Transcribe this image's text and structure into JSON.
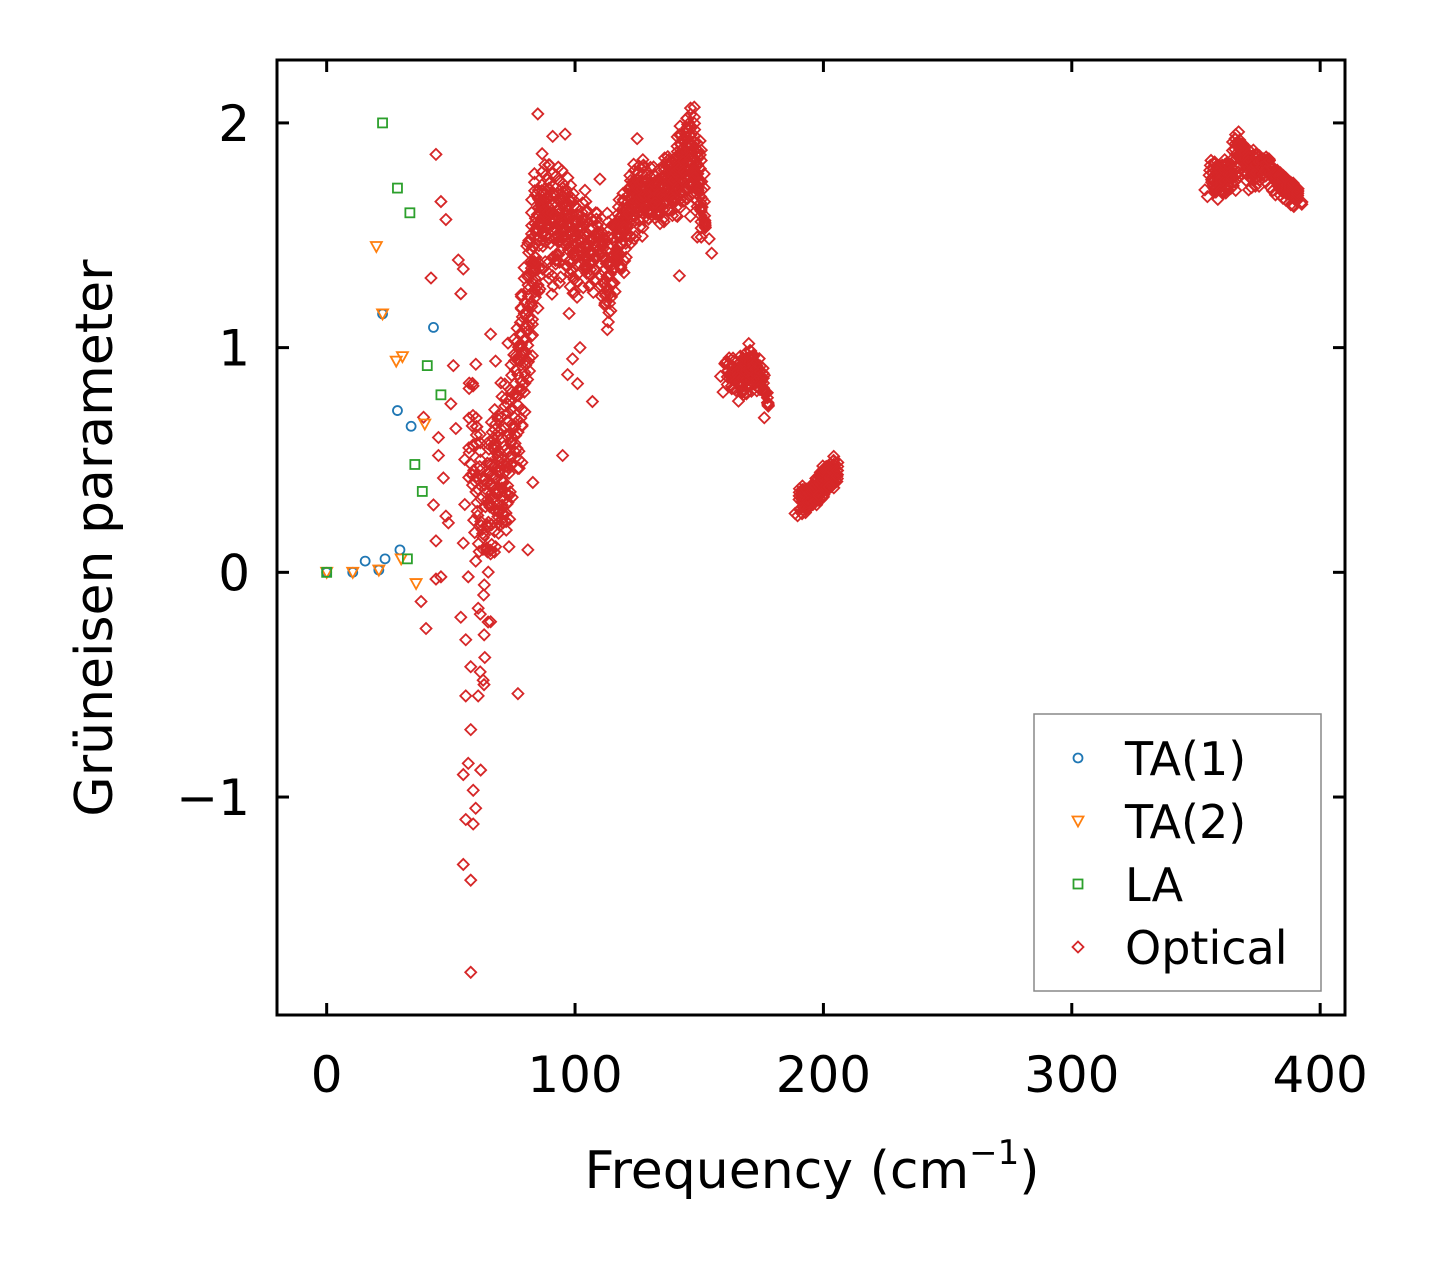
{
  "chart_data": {
    "type": "scatter",
    "xlabel": "Frequency (cm",
    "xlabel_sup": "−1",
    "xlabel_end": ")",
    "ylabel": "Grüneisen parameter",
    "xlim": [
      -20,
      410
    ],
    "ylim": [
      -1.97,
      2.28
    ],
    "xticks": [
      0,
      100,
      200,
      300,
      400
    ],
    "xtick_labels": [
      "0",
      "100",
      "200",
      "300",
      "400"
    ],
    "yticks": [
      -1,
      0,
      1,
      2
    ],
    "ytick_labels": [
      "−1",
      "0",
      "1",
      "2"
    ],
    "legend_position": "lower-right",
    "series": [
      {
        "name": "TA(1)",
        "marker": "circle",
        "color": "#1f77b4",
        "points": [
          [
            0,
            0
          ],
          [
            10.5,
            0
          ],
          [
            15.5,
            0.05
          ],
          [
            21,
            0.01
          ],
          [
            23.5,
            0.06
          ],
          [
            29.5,
            0.1
          ],
          [
            22.5,
            1.15
          ],
          [
            28.5,
            0.72
          ],
          [
            34,
            0.65
          ],
          [
            43,
            1.09
          ]
        ]
      },
      {
        "name": "TA(2)",
        "marker": "triangle-down",
        "color": "#ff7f0e",
        "points": [
          [
            0,
            0
          ],
          [
            10.5,
            0
          ],
          [
            21,
            0.01
          ],
          [
            30,
            0.06
          ],
          [
            36,
            -0.05
          ],
          [
            20,
            1.45
          ],
          [
            22.5,
            1.15
          ],
          [
            28,
            0.94
          ],
          [
            30.5,
            0.96
          ],
          [
            39.5,
            0.66
          ]
        ]
      },
      {
        "name": "LA",
        "marker": "square",
        "color": "#2ca02c",
        "points": [
          [
            0,
            0
          ],
          [
            32.5,
            0.06
          ],
          [
            22.5,
            2.0
          ],
          [
            28.5,
            1.71
          ],
          [
            33.5,
            1.6
          ],
          [
            40.5,
            0.92
          ],
          [
            46,
            0.79
          ],
          [
            35.5,
            0.48
          ],
          [
            38.5,
            0.36
          ]
        ]
      },
      {
        "name": "Optical",
        "marker": "diamond",
        "color": "#d62728",
        "points": [
          [
            44,
            1.86
          ],
          [
            46,
            1.65
          ],
          [
            48,
            1.57
          ],
          [
            42,
            1.31
          ],
          [
            53,
            1.39
          ],
          [
            55,
            1.35
          ],
          [
            54,
            1.24
          ],
          [
            51,
            0.92
          ],
          [
            50,
            0.75
          ],
          [
            52,
            0.64
          ],
          [
            45,
            0.52
          ],
          [
            47,
            0.42
          ],
          [
            43,
            0.3
          ],
          [
            49,
            0.22
          ],
          [
            44,
            0.14
          ],
          [
            46,
            -0.02
          ],
          [
            44,
            -0.03
          ],
          [
            38,
            -0.13
          ],
          [
            40,
            -0.25
          ],
          [
            39,
            0.69
          ],
          [
            45,
            0.6
          ],
          [
            48,
            0.25
          ],
          [
            55,
            0.13
          ],
          [
            54,
            -0.2
          ],
          [
            56,
            -0.3
          ],
          [
            58,
            -0.42
          ],
          [
            61,
            -0.55
          ],
          [
            56,
            -0.55
          ],
          [
            58,
            -0.7
          ],
          [
            57,
            -0.85
          ],
          [
            55,
            -0.9
          ],
          [
            59,
            -0.97
          ],
          [
            60,
            -1.05
          ],
          [
            59,
            -1.12
          ],
          [
            56,
            -1.1
          ],
          [
            55,
            -1.3
          ],
          [
            58,
            -1.37
          ],
          [
            58,
            -1.78
          ],
          [
            61,
            -0.16
          ],
          [
            63,
            -0.48
          ],
          [
            66,
            -0.22
          ],
          [
            77,
            -0.54
          ],
          [
            62,
            -0.88
          ],
          [
            57,
            -0.02
          ],
          [
            60,
            0.05
          ],
          [
            95,
            0.52
          ],
          [
            97,
            0.88
          ],
          [
            99,
            0.95
          ],
          [
            101,
            0.84
          ],
          [
            107,
            0.76
          ],
          [
            102,
            1.0
          ],
          [
            113,
            1.08
          ],
          [
            142,
            1.32
          ],
          [
            136,
            1.62
          ],
          [
            125,
            1.93
          ],
          [
            110,
            1.75
          ],
          [
            104,
            1.7
          ],
          [
            96,
            1.95
          ],
          [
            91,
            1.94
          ],
          [
            85,
            2.04
          ],
          [
            148,
            2.07
          ],
          [
            145,
            2.02
          ],
          [
            155,
            1.42
          ],
          [
            83,
            0.4
          ],
          [
            81,
            0.1
          ],
          [
            71,
            0.22
          ],
          [
            66,
            1.06
          ],
          [
            68,
            0.94
          ],
          [
            73,
            1.02
          ]
        ],
        "dense_segments": [
          [
            [
              57,
              0.35
            ],
            [
              59,
              0.95
            ],
            [
              63,
              -0.5
            ],
            [
              65,
              0.55
            ],
            [
              67,
              0.05
            ],
            [
              69,
              0.45
            ],
            [
              71,
              0.85
            ],
            [
              73,
              0.3
            ],
            [
              76,
              1.0
            ],
            [
              78,
              0.6
            ],
            [
              80,
              1.35
            ],
            [
              82,
              1.05
            ],
            [
              84,
              1.75
            ],
            [
              86,
              1.5
            ],
            [
              88,
              1.85
            ],
            [
              90,
              1.25
            ],
            [
              93,
              1.6
            ],
            [
              96,
              1.45
            ],
            [
              98,
              1.75
            ],
            [
              100,
              1.35
            ],
            [
              103,
              1.55
            ],
            [
              106,
              1.25
            ],
            [
              109,
              1.45
            ],
            [
              112,
              1.15
            ],
            [
              115,
              1.3
            ],
            [
              117,
              1.55
            ],
            [
              120,
              1.65
            ],
            [
              122,
              1.45
            ],
            [
              124,
              1.8
            ],
            [
              127,
              1.6
            ],
            [
              130,
              1.72
            ],
            [
              133,
              1.6
            ],
            [
              136,
              1.72
            ],
            [
              139,
              1.68
            ],
            [
              141,
              1.8
            ],
            [
              143,
              1.95
            ],
            [
              145,
              1.7
            ],
            [
              147,
              2.05
            ],
            [
              149,
              1.85
            ],
            [
              151,
              1.6
            ],
            [
              153,
              1.5
            ]
          ],
          [
            [
              57,
              0.55
            ],
            [
              61,
              0.25
            ],
            [
              64,
              0.1
            ],
            [
              67,
              0.6
            ],
            [
              70,
              0.4
            ],
            [
              72,
              0.15
            ],
            [
              75,
              0.7
            ],
            [
              77,
              0.45
            ],
            [
              79,
              1.2
            ],
            [
              81,
              0.85
            ],
            [
              83,
              1.6
            ],
            [
              85,
              1.25
            ],
            [
              87,
              1.7
            ],
            [
              89,
              1.45
            ],
            [
              91,
              1.8
            ],
            [
              93,
              1.3
            ],
            [
              95,
              1.7
            ],
            [
              97,
              1.55
            ],
            [
              99,
              1.2
            ],
            [
              101,
              1.5
            ],
            [
              104,
              1.65
            ],
            [
              107,
              1.35
            ],
            [
              110,
              1.55
            ],
            [
              113,
              1.2
            ],
            [
              116,
              1.45
            ],
            [
              118,
              1.35
            ],
            [
              121,
              1.55
            ],
            [
              123,
              1.75
            ],
            [
              126,
              1.52
            ],
            [
              129,
              1.65
            ],
            [
              132,
              1.78
            ],
            [
              135,
              1.55
            ],
            [
              138,
              1.8
            ],
            [
              140,
              1.6
            ],
            [
              142,
              1.72
            ],
            [
              144,
              1.85
            ],
            [
              146,
              2.0
            ],
            [
              148,
              1.75
            ],
            [
              150,
              1.92
            ],
            [
              152,
              1.55
            ]
          ],
          [
            [
              60,
              0.7
            ],
            [
              62,
              0.45
            ],
            [
              65,
              0.3
            ],
            [
              68,
              0.7
            ],
            [
              70,
              0.2
            ],
            [
              73,
              0.55
            ],
            [
              75,
              0.85
            ],
            [
              78,
              1.1
            ],
            [
              80,
              0.8
            ],
            [
              82,
              1.5
            ],
            [
              84,
              1.2
            ],
            [
              86,
              1.65
            ],
            [
              88,
              1.55
            ],
            [
              90,
              1.7
            ],
            [
              92,
              1.45
            ],
            [
              94,
              1.8
            ],
            [
              97,
              1.35
            ],
            [
              100,
              1.65
            ],
            [
              102,
              1.45
            ],
            [
              105,
              1.3
            ],
            [
              108,
              1.6
            ],
            [
              111,
              1.4
            ],
            [
              114,
              1.55
            ],
            [
              119,
              1.5
            ],
            [
              122,
              1.62
            ],
            [
              125,
              1.7
            ],
            [
              128,
              1.8
            ],
            [
              131,
              1.62
            ],
            [
              134,
              1.7
            ],
            [
              137,
              1.85
            ],
            [
              140,
              1.72
            ],
            [
              143,
              1.9
            ],
            [
              145,
              1.62
            ],
            [
              147,
              1.8
            ],
            [
              149,
              1.7
            ],
            [
              151,
              1.5
            ]
          ],
          [
            [
              160,
              0.92
            ],
            [
              163,
              0.88
            ],
            [
              166,
              0.85
            ],
            [
              168,
              0.93
            ],
            [
              170,
              0.82
            ],
            [
              172,
              0.95
            ],
            [
              174,
              0.88
            ],
            [
              176,
              0.8
            ],
            [
              178,
              0.72
            ]
          ],
          [
            [
              161,
              0.85
            ],
            [
              164,
              0.93
            ],
            [
              167,
              0.8
            ],
            [
              169,
              0.9
            ],
            [
              171,
              0.97
            ],
            [
              173,
              0.85
            ],
            [
              175,
              0.92
            ],
            [
              177,
              0.75
            ]
          ],
          [
            [
              190,
              0.31
            ],
            [
              192,
              0.33
            ],
            [
              194,
              0.35
            ],
            [
              196,
              0.32
            ],
            [
              198,
              0.37
            ],
            [
              200,
              0.4
            ],
            [
              202,
              0.42
            ],
            [
              204,
              0.45
            ],
            [
              206,
              0.48
            ]
          ],
          [
            [
              191,
              0.3
            ],
            [
              193,
              0.31
            ],
            [
              195,
              0.36
            ],
            [
              197,
              0.34
            ],
            [
              199,
              0.38
            ],
            [
              201,
              0.43
            ],
            [
              203,
              0.41
            ],
            [
              205,
              0.47
            ]
          ],
          [
            [
              355,
              1.75
            ],
            [
              358,
              1.8
            ],
            [
              360,
              1.7
            ],
            [
              362,
              1.78
            ],
            [
              364,
              1.75
            ],
            [
              366,
              1.88
            ],
            [
              368,
              1.92
            ],
            [
              370,
              1.84
            ],
            [
              372,
              1.78
            ],
            [
              374,
              1.85
            ],
            [
              376,
              1.8
            ],
            [
              378,
              1.82
            ],
            [
              380,
              1.78
            ],
            [
              382,
              1.75
            ],
            [
              384,
              1.74
            ],
            [
              386,
              1.72
            ],
            [
              388,
              1.7
            ],
            [
              390,
              1.68
            ],
            [
              392,
              1.67
            ]
          ],
          [
            [
              356,
              1.72
            ],
            [
              359,
              1.76
            ],
            [
              361,
              1.74
            ],
            [
              363,
              1.8
            ],
            [
              365,
              1.72
            ],
            [
              367,
              1.9
            ],
            [
              369,
              1.8
            ],
            [
              371,
              1.87
            ],
            [
              373,
              1.72
            ],
            [
              375,
              1.82
            ],
            [
              377,
              1.76
            ],
            [
              379,
              1.84
            ],
            [
              381,
              1.77
            ],
            [
              383,
              1.73
            ],
            [
              385,
              1.72
            ],
            [
              387,
              1.71
            ],
            [
              389,
              1.69
            ],
            [
              391,
              1.68
            ]
          ]
        ]
      }
    ]
  }
}
